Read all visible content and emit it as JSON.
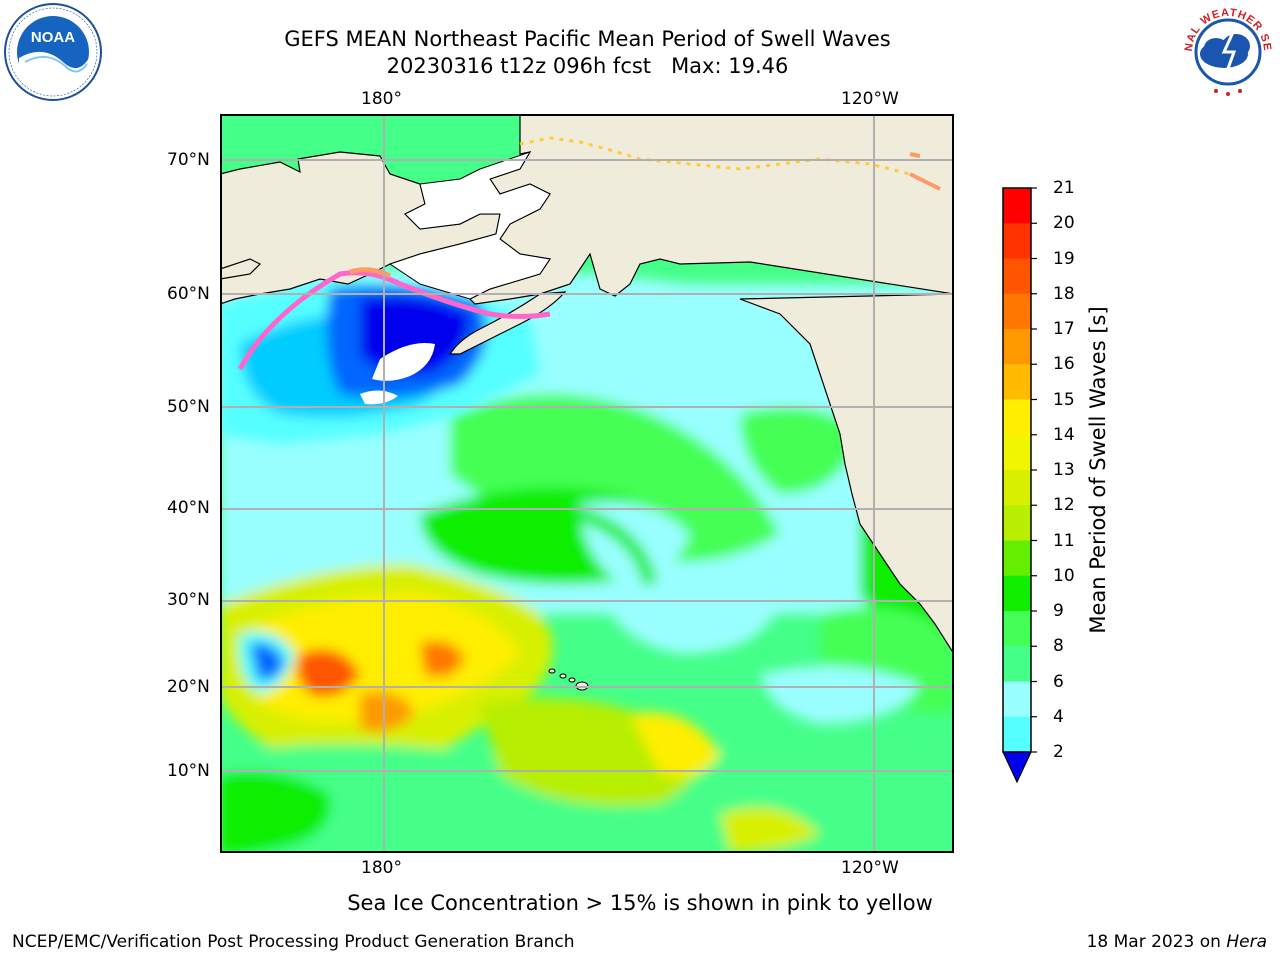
{
  "header": {
    "title_line1": "GEFS MEAN Northeast Pacific Mean Period of Swell Waves",
    "title_line2": "20230316 t12z 096h fcst   Max: 19.46"
  },
  "map": {
    "top_lon_labels": [
      "180°",
      "120°W"
    ],
    "bottom_lon_labels": [
      "180°",
      "120°W"
    ],
    "lat_labels": [
      "70°N",
      "60°N",
      "50°N",
      "40°N",
      "30°N",
      "20°N",
      "10°N"
    ],
    "land_color": "#efecdc",
    "sea_ice_colors": [
      "#ff66cc",
      "#ff9966",
      "#ffcc33",
      "#ffee55"
    ]
  },
  "colorbar": {
    "label": "Mean Period of Swell Waves [s]",
    "ticks": [
      "21",
      "20",
      "19",
      "18",
      "17",
      "16",
      "15",
      "14",
      "13",
      "12",
      "11",
      "10",
      "9",
      "8",
      "6",
      "4",
      "2"
    ],
    "colors": [
      "#ff0000",
      "#ff3300",
      "#ff5500",
      "#ff7700",
      "#ff9900",
      "#ffbb00",
      "#ffee00",
      "#f0f500",
      "#d8f000",
      "#b8ee00",
      "#66ee00",
      "#11ee00",
      "#44ff55",
      "#44ff88",
      "#99ffff",
      "#55ffff",
      "#00ffff",
      "#00ccff",
      "#0066ff",
      "#0000ee"
    ]
  },
  "caption": "Sea Ice Concentration > 15% is shown in pink to yellow",
  "footer": {
    "left": "NCEP/EMC/Verification Post Processing Product Generation Branch",
    "right_date": "18 Mar 2023 on ",
    "right_machine": "Hera"
  },
  "logos": {
    "noaa_text": "NOAA",
    "nws_text": "NATIONAL WEATHER SERVICE"
  }
}
